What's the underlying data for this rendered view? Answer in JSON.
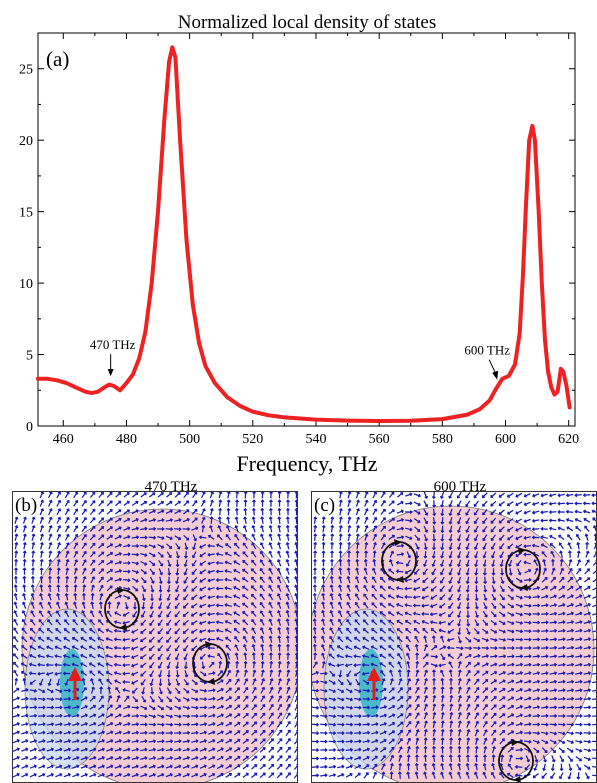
{
  "chart_data": {
    "type": "line",
    "title": "Normalized local density of states",
    "panel_label": "(a)",
    "xlabel": "Frequency, THz",
    "ylabel": "",
    "xlim": [
      452,
      622
    ],
    "ylim": [
      0,
      27.5
    ],
    "xticks": [
      460,
      480,
      500,
      520,
      540,
      560,
      580,
      600,
      620
    ],
    "yticks": [
      0,
      5,
      10,
      15,
      20,
      25
    ],
    "grid": false,
    "series": [
      {
        "color": "#ee2222",
        "x": [
          452,
          455,
          458,
          461,
          464,
          467,
          469,
          471,
          473,
          474.5,
          476,
          478,
          480,
          482,
          484,
          486,
          488,
          490,
          492,
          493.5,
          494.5,
          495.5,
          497,
          499,
          501,
          503,
          505,
          508,
          512,
          516,
          520,
          525,
          530,
          540,
          550,
          560,
          570,
          580,
          588,
          592,
          595,
          597,
          599,
          601,
          603,
          604.5,
          605.5,
          606.5,
          607.5,
          608.5,
          609.3,
          610.5,
          611.5,
          612.5,
          613.5,
          614.5,
          615.5,
          616.5,
          617.5,
          618.3,
          619.3,
          620.3
        ],
        "y": [
          3.3,
          3.3,
          3.2,
          3.0,
          2.7,
          2.4,
          2.3,
          2.4,
          2.7,
          2.9,
          2.8,
          2.5,
          3.0,
          3.6,
          4.7,
          6.6,
          10.0,
          15.0,
          21.5,
          25.5,
          26.5,
          25.8,
          20.0,
          13.0,
          8.5,
          5.8,
          4.2,
          3.0,
          2.0,
          1.4,
          1.0,
          0.75,
          0.6,
          0.45,
          0.38,
          0.35,
          0.37,
          0.48,
          0.8,
          1.2,
          1.8,
          2.6,
          3.3,
          3.5,
          4.3,
          6.5,
          10.5,
          15.5,
          20.0,
          21.0,
          20.0,
          15.0,
          10.0,
          6.0,
          3.8,
          2.7,
          2.2,
          2.4,
          4.0,
          3.8,
          2.8,
          1.3
        ]
      }
    ],
    "annotations": [
      {
        "text": "470 THz",
        "target_x": 475,
        "target_y": 3.0
      },
      {
        "text": "600 THz",
        "target_x": 598,
        "target_y": 3.1
      }
    ]
  },
  "panels": [
    {
      "label": "(b)",
      "title": "470 THz"
    },
    {
      "label": "(c)",
      "title": "600 THz"
    }
  ],
  "colors": {
    "curve": "#ee2222",
    "field_arrows": "#1a1ab8",
    "disk_fill": "#f4cdd4",
    "source_spot": "#3fb5c8",
    "dipole_arrow": "#e51c1c"
  }
}
